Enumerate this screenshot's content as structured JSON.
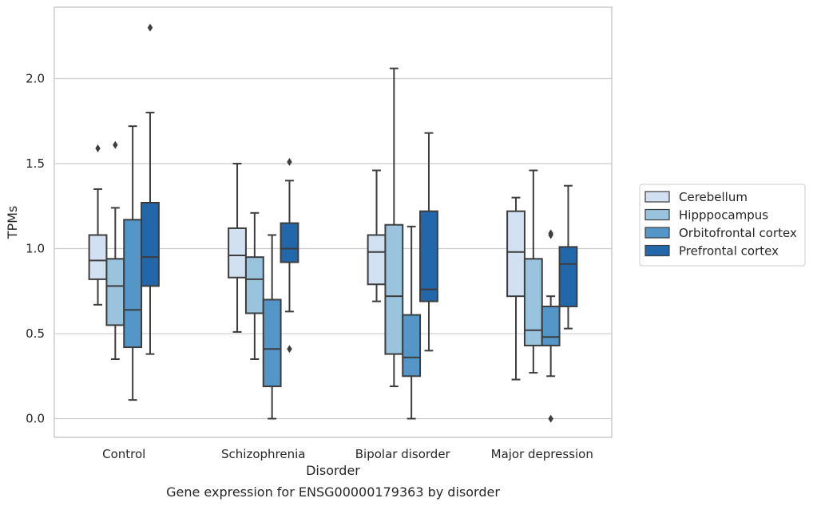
{
  "chart_data": {
    "type": "box",
    "xlabel": "Disorder",
    "ylabel": "TPMs",
    "caption": "Gene expression for ENSG00000179363 by disorder",
    "ylim": [
      -0.11,
      2.42
    ],
    "yticks": [
      "0.0",
      "0.5",
      "1.0",
      "1.5",
      "2.0"
    ],
    "ytick_values": [
      0.0,
      0.5,
      1.0,
      1.5,
      2.0
    ],
    "grid": "horizontal",
    "legend_position": "right",
    "categories": [
      "Control",
      "Schizophrenia",
      "Bipolar disorder",
      "Major depression"
    ],
    "series": [
      {
        "name": "Cerebellum",
        "color": "#d1e1f1",
        "boxes": [
          {
            "whisker_low": 0.67,
            "q1": 0.82,
            "median": 0.93,
            "q3": 1.08,
            "whisker_high": 1.35,
            "outliers": [
              1.59
            ]
          },
          {
            "whisker_low": 0.51,
            "q1": 0.83,
            "median": 0.96,
            "q3": 1.12,
            "whisker_high": 1.5,
            "outliers": []
          },
          {
            "whisker_low": 0.69,
            "q1": 0.79,
            "median": 0.98,
            "q3": 1.08,
            "whisker_high": 1.46,
            "outliers": []
          },
          {
            "whisker_low": 0.23,
            "q1": 0.72,
            "median": 0.98,
            "q3": 1.22,
            "whisker_high": 1.3,
            "outliers": []
          }
        ]
      },
      {
        "name": "Hipppocampus",
        "color": "#9ac3de",
        "boxes": [
          {
            "whisker_low": 0.35,
            "q1": 0.55,
            "median": 0.78,
            "q3": 0.94,
            "whisker_high": 1.24,
            "outliers": [
              1.61
            ]
          },
          {
            "whisker_low": 0.35,
            "q1": 0.62,
            "median": 0.82,
            "q3": 0.95,
            "whisker_high": 1.21,
            "outliers": []
          },
          {
            "whisker_low": 0.19,
            "q1": 0.38,
            "median": 0.72,
            "q3": 1.14,
            "whisker_high": 2.06,
            "outliers": []
          },
          {
            "whisker_low": 0.27,
            "q1": 0.43,
            "median": 0.52,
            "q3": 0.94,
            "whisker_high": 1.46,
            "outliers": []
          }
        ]
      },
      {
        "name": "Orbitofrontal cortex",
        "color": "#5496c8",
        "boxes": [
          {
            "whisker_low": 0.11,
            "q1": 0.42,
            "median": 0.64,
            "q3": 1.17,
            "whisker_high": 1.72,
            "outliers": []
          },
          {
            "whisker_low": 0.0,
            "q1": 0.19,
            "median": 0.41,
            "q3": 0.7,
            "whisker_high": 1.08,
            "outliers": []
          },
          {
            "whisker_low": 0.0,
            "q1": 0.25,
            "median": 0.36,
            "q3": 0.61,
            "whisker_high": 1.13,
            "outliers": []
          },
          {
            "whisker_low": 0.25,
            "q1": 0.43,
            "median": 0.48,
            "q3": 0.66,
            "whisker_high": 0.72,
            "outliers": [
              1.08,
              1.09,
              0.0
            ]
          }
        ]
      },
      {
        "name": "Prefrontal cortex",
        "color": "#2367ab",
        "boxes": [
          {
            "whisker_low": 0.38,
            "q1": 0.78,
            "median": 0.95,
            "q3": 1.27,
            "whisker_high": 1.8,
            "outliers": [
              2.3
            ]
          },
          {
            "whisker_low": 0.63,
            "q1": 0.92,
            "median": 1.0,
            "q3": 1.15,
            "whisker_high": 1.4,
            "outliers": [
              1.51,
              0.41
            ]
          },
          {
            "whisker_low": 0.4,
            "q1": 0.69,
            "median": 0.76,
            "q3": 1.22,
            "whisker_high": 1.68,
            "outliers": []
          },
          {
            "whisker_low": 0.53,
            "q1": 0.66,
            "median": 0.91,
            "q3": 1.01,
            "whisker_high": 1.37,
            "outliers": []
          }
        ]
      }
    ]
  }
}
